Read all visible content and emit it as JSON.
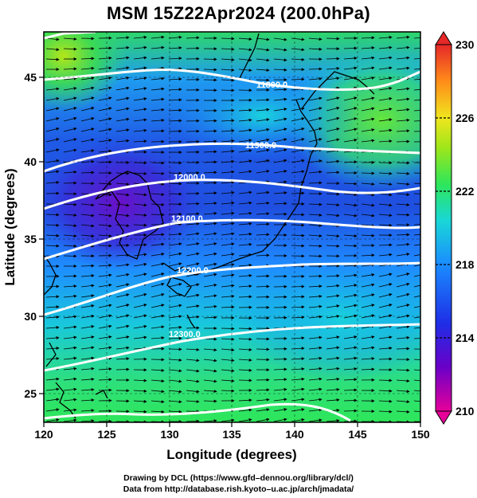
{
  "title": "MSM 15Z22Apr2024 (200.0hPa)",
  "x_axis": {
    "label": "Longitude (degrees)",
    "range": [
      120,
      150
    ],
    "ticks": [
      "120",
      "125",
      "130",
      "135",
      "140",
      "145",
      "150"
    ]
  },
  "y_axis": {
    "label": "Latitude  (degrees)",
    "range": [
      22.4,
      47.6
    ],
    "ticks": [
      "25",
      "30",
      "35",
      "40",
      "45"
    ]
  },
  "colorbar": {
    "range": [
      210,
      230
    ],
    "labels": [
      "230",
      "226",
      "222",
      "218",
      "214",
      "210"
    ],
    "colors": [
      "#e60099",
      "#6a00c8",
      "#1e2ee6",
      "#1a8cff",
      "#19d7d7",
      "#2ee65a",
      "#a0e619",
      "#f0e61e",
      "#ff8c19",
      "#e62828"
    ]
  },
  "contours": {
    "labels": [
      "11800.0",
      "11900.0",
      "12000.0",
      "12100.0",
      "12200.0",
      "12300.0"
    ],
    "color": "#ffffff"
  },
  "credits": {
    "line1": "Drawing by DCL (https://www.gfd–dennou.org/library/dcl/)",
    "line2": "Data from http://database.rish.kyoto–u.ac.jp/arch/jmadata/"
  }
}
